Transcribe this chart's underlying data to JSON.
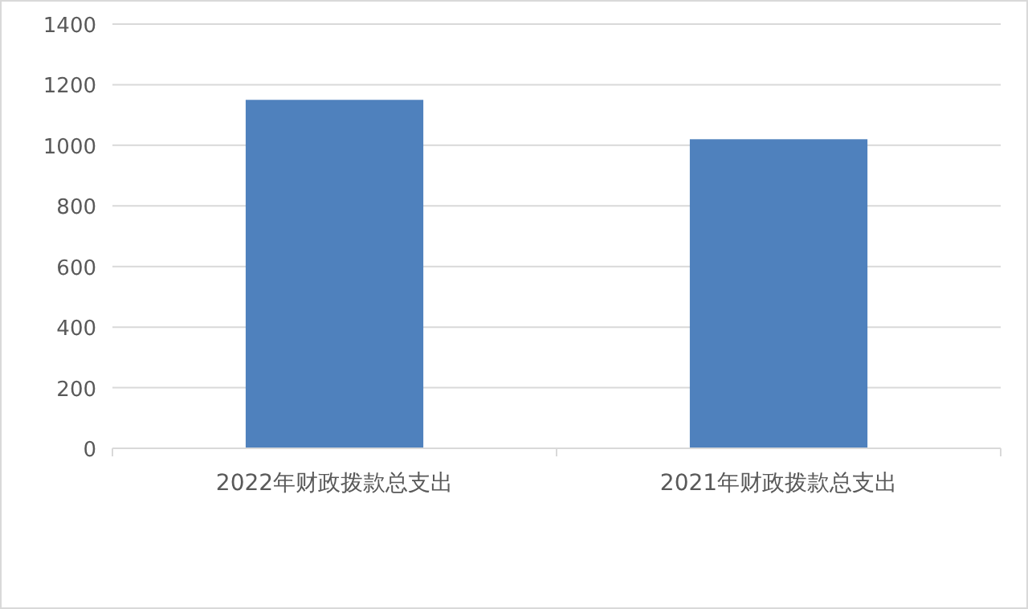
{
  "chart_data": {
    "type": "bar",
    "categories": [
      "2022年财政拨款总支出",
      "2021年财政拨款总支出"
    ],
    "series": [
      {
        "color": "#4f81bd",
        "values": [
          1150,
          1020
        ]
      }
    ],
    "ylim": [
      0,
      1400
    ],
    "yticks": [
      0,
      200,
      400,
      600,
      800,
      1000,
      1200,
      1400
    ],
    "grid": "y",
    "legend": false
  }
}
